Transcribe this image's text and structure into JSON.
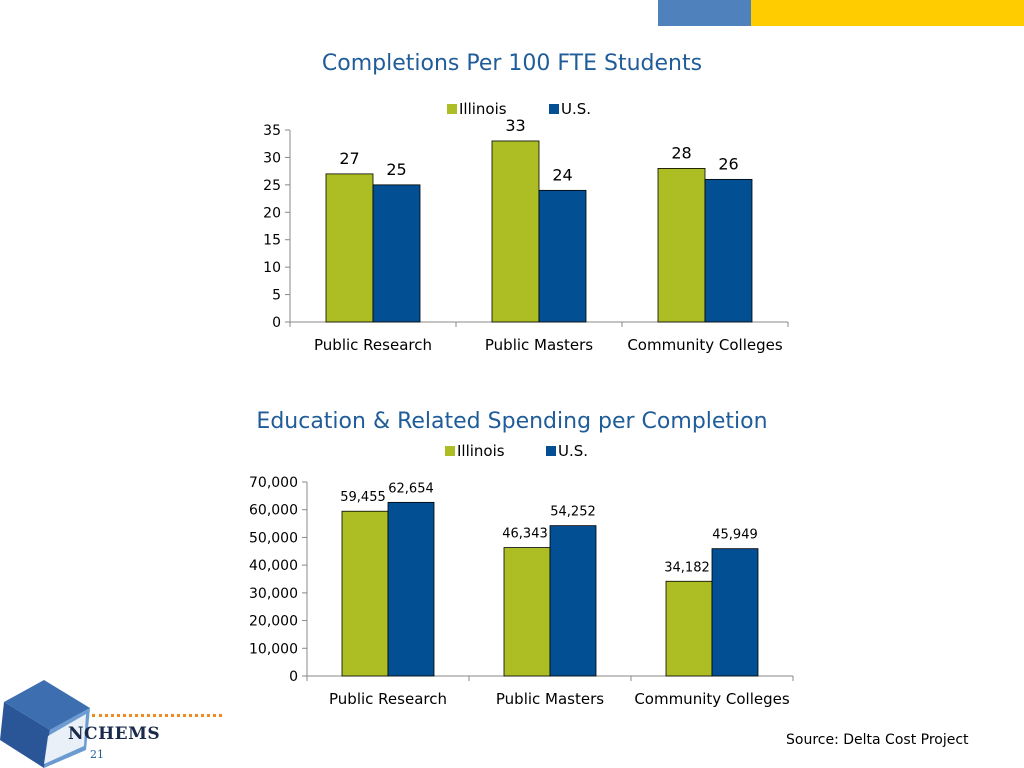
{
  "header": {
    "accent_blue": "#4f81bd",
    "accent_yellow": "#ffcc00"
  },
  "colors": {
    "illinois": "#adbe25",
    "us": "#034f93",
    "title": "#1f5c99"
  },
  "chart_data": [
    {
      "type": "bar",
      "title": "Completions Per 100 FTE Students",
      "categories": [
        "Public Research",
        "Public Masters",
        "Community Colleges"
      ],
      "series": [
        {
          "name": "Illinois",
          "values": [
            27,
            33,
            28
          ],
          "labels": [
            "27",
            "33",
            "28"
          ]
        },
        {
          "name": "U.S.",
          "values": [
            25,
            24,
            26
          ],
          "labels": [
            "25",
            "24",
            "26"
          ]
        }
      ],
      "ylim": [
        0,
        35
      ],
      "yticks": [
        "0",
        "5",
        "10",
        "15",
        "20",
        "25",
        "30",
        "35"
      ],
      "legend": "top",
      "grid": false,
      "xlabel": "",
      "ylabel": ""
    },
    {
      "type": "bar",
      "title": "Education & Related Spending per Completion",
      "categories": [
        "Public Research",
        "Public Masters",
        "Community Colleges"
      ],
      "series": [
        {
          "name": "Illinois",
          "values": [
            59455,
            46343,
            34182
          ],
          "labels": [
            "59,455",
            "46,343",
            "34,182"
          ]
        },
        {
          "name": "U.S.",
          "values": [
            62654,
            54252,
            45949
          ],
          "labels": [
            "62,654",
            "54,252",
            "45,949"
          ]
        }
      ],
      "ylim": [
        0,
        70000
      ],
      "yticks": [
        "0",
        "10,000",
        "20,000",
        "30,000",
        "40,000",
        "50,000",
        "60,000",
        "70,000"
      ],
      "legend": "top",
      "grid": false,
      "xlabel": "",
      "ylabel": ""
    }
  ],
  "footer": {
    "logo_text": "NCHEMS",
    "page_number": "21",
    "source": "Source: Delta Cost Project"
  }
}
